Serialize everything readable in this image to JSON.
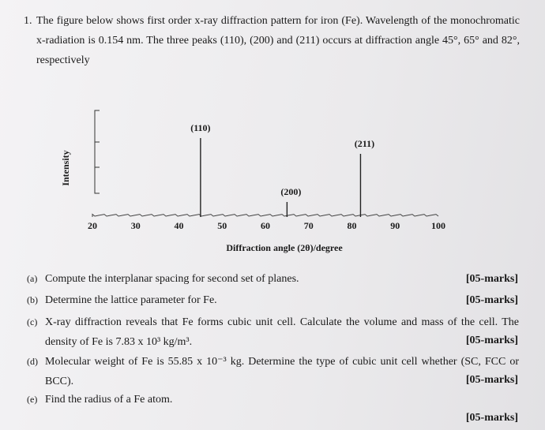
{
  "question": {
    "number": "1.",
    "text": "The figure below shows first order x-ray diffraction pattern for iron (Fe). Wavelength of the monochromatic x-radiation is 0.154 nm. The three peaks (110), (200) and (211) occurs at diffraction angle 45°, 65° and 82°, respectively"
  },
  "chart_data": {
    "type": "xrd",
    "ylabel": "Intensity",
    "xlabel": "Diffraction angle (2θ)/degree",
    "xlim": [
      20,
      100
    ],
    "xticks": [
      20,
      30,
      40,
      50,
      60,
      70,
      80,
      90,
      100
    ],
    "ylim": [
      0,
      125
    ],
    "peaks": [
      {
        "label": "(110)",
        "x": 45,
        "intensity": 100
      },
      {
        "label": "(200)",
        "x": 65,
        "intensity": 19
      },
      {
        "label": "(211)",
        "x": 82,
        "intensity": 80
      }
    ]
  },
  "parts": [
    {
      "label": "(a)",
      "text": "Compute the interplanar spacing for second set of planes.",
      "marks": "[05-marks]"
    },
    {
      "label": "(b)",
      "text": "Determine the lattice parameter for Fe.",
      "marks": "[05-marks]"
    },
    {
      "label": "(c)",
      "text": "X-ray diffraction reveals that Fe forms cubic unit cell. Calculate the volume and mass of the cell. The density of Fe is 7.83 x 10³ kg/m³.",
      "marks": "[05-marks]"
    },
    {
      "label": "(d)",
      "text": "Molecular weight of Fe is 55.85 x 10⁻³ kg. Determine the type of cubic unit cell whether (SC, FCC or BCC).",
      "marks": "[05-marks]"
    },
    {
      "label": "(e)",
      "text": "Find the radius of a Fe atom.",
      "marks": "[05-marks]"
    }
  ]
}
